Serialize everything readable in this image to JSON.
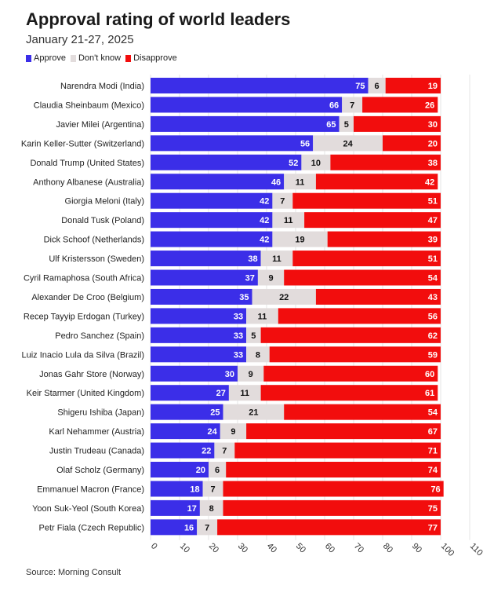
{
  "header": {
    "title": "Approval rating of world leaders",
    "subtitle": "January 21-27, 2025"
  },
  "legend": [
    {
      "label": "Approve",
      "color": "#3b2ee8"
    },
    {
      "label": "Don't know",
      "color": "#e2dcdc"
    },
    {
      "label": "Disapprove",
      "color": "#f20d0d"
    }
  ],
  "footer": {
    "source": "Source: Morning Consult"
  },
  "chart_data": {
    "type": "bar",
    "orientation": "horizontal",
    "stacked": true,
    "title": "Approval rating of world leaders",
    "subtitle": "January 21-27, 2025",
    "xlim": [
      0,
      110
    ],
    "xticks": [
      0,
      10,
      20,
      30,
      40,
      50,
      60,
      70,
      80,
      90,
      100,
      110
    ],
    "grid": true,
    "legend_position": "top-left",
    "categories": [
      "Narendra Modi (India)",
      "Claudia Sheinbaum (Mexico)",
      "Javier Milei (Argentina)",
      "Karin Keller-Sutter (Switzerland)",
      "Donald Trump (United States)",
      "Anthony Albanese (Australia)",
      "Giorgia Meloni (Italy)",
      "Donald Tusk (Poland)",
      "Dick Schoof (Netherlands)",
      "Ulf Kristersson (Sweden)",
      "Cyril Ramaphosa (South Africa)",
      "Alexander De Croo (Belgium)",
      "Recep Tayyip Erdogan (Turkey)",
      "Pedro Sanchez (Spain)",
      "Luiz Inacio Lula da Silva (Brazil)",
      "Jonas Gahr Store (Norway)",
      "Keir Starmer (United Kingdom)",
      "Shigeru Ishiba (Japan)",
      "Karl Nehammer (Austria)",
      "Justin Trudeau (Canada)",
      "Olaf Scholz (Germany)",
      "Emmanuel Macron (France)",
      "Yoon Suk-Yeol (South Korea)",
      "Petr Fiala (Czech Republic)"
    ],
    "series": [
      {
        "name": "Approve",
        "color": "#3b2ee8",
        "values": [
          75,
          66,
          65,
          56,
          52,
          46,
          42,
          42,
          42,
          38,
          37,
          35,
          33,
          33,
          33,
          30,
          27,
          25,
          24,
          22,
          20,
          18,
          17,
          16
        ]
      },
      {
        "name": "Don't know",
        "color": "#e2dcdc",
        "values": [
          6,
          7,
          5,
          24,
          10,
          11,
          7,
          11,
          19,
          11,
          9,
          22,
          11,
          5,
          8,
          9,
          11,
          21,
          9,
          7,
          6,
          7,
          8,
          7
        ]
      },
      {
        "name": "Disapprove",
        "color": "#f20d0d",
        "values": [
          19,
          26,
          30,
          20,
          38,
          42,
          51,
          47,
          39,
          51,
          54,
          43,
          56,
          62,
          59,
          60,
          61,
          54,
          67,
          71,
          74,
          76,
          75,
          77
        ]
      }
    ]
  }
}
